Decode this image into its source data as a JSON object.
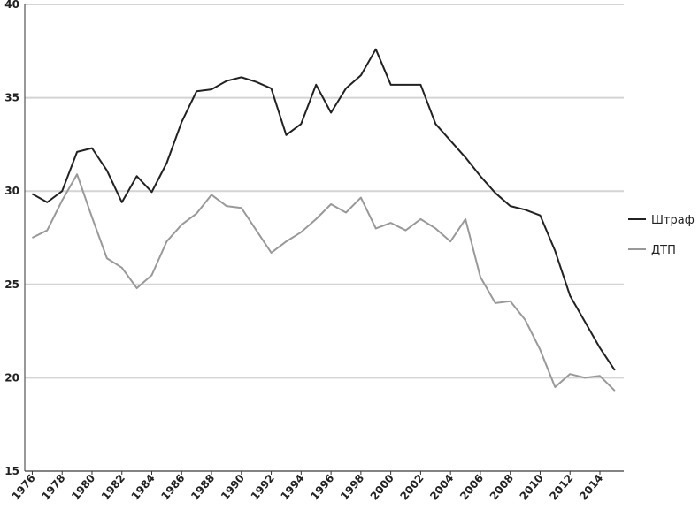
{
  "chart_data": {
    "type": "line",
    "x": [
      1976,
      1977,
      1978,
      1979,
      1980,
      1981,
      1982,
      1983,
      1984,
      1985,
      1986,
      1987,
      1988,
      1989,
      1990,
      1991,
      1992,
      1993,
      1994,
      1995,
      1996,
      1997,
      1998,
      1999,
      2000,
      2001,
      2002,
      2003,
      2004,
      2005,
      2006,
      2007,
      2008,
      2009,
      2010,
      2011,
      2012,
      2013,
      2014,
      2015
    ],
    "series": [
      {
        "name": "Штраф",
        "color": "#222222",
        "values": [
          29.85,
          29.4,
          30.0,
          32.1,
          32.3,
          31.1,
          29.4,
          30.8,
          29.95,
          31.5,
          33.7,
          35.35,
          35.45,
          35.9,
          36.1,
          35.85,
          35.5,
          33.0,
          33.6,
          35.7,
          34.2,
          35.5,
          36.2,
          37.6,
          35.7,
          35.7,
          35.7,
          33.6,
          32.7,
          31.8,
          30.8,
          29.9,
          29.2,
          29.0,
          28.7,
          26.8,
          24.4,
          23.0,
          21.6,
          20.4
        ]
      },
      {
        "name": "ДТП",
        "color": "#999999",
        "values": [
          27.5,
          27.9,
          29.5,
          30.9,
          28.6,
          26.4,
          25.9,
          24.8,
          25.5,
          27.3,
          28.2,
          28.8,
          29.8,
          29.2,
          29.1,
          27.9,
          26.7,
          27.3,
          27.8,
          28.5,
          29.3,
          28.85,
          29.65,
          28.0,
          28.3,
          27.9,
          28.5,
          28.0,
          27.3,
          28.5,
          25.4,
          24.0,
          24.1,
          23.1,
          21.5,
          19.5,
          20.2,
          20.0,
          20.1,
          19.3
        ]
      }
    ],
    "xlim": [
      1975.5,
      2015.6
    ],
    "xticks": [
      1976,
      1978,
      1980,
      1982,
      1984,
      1986,
      1988,
      1990,
      1992,
      1994,
      1996,
      1998,
      2000,
      2002,
      2004,
      2006,
      2008,
      2010,
      2012,
      2014
    ],
    "ylim": [
      15,
      40
    ],
    "yticks": [
      15,
      20,
      25,
      30,
      35,
      40
    ],
    "grid": true,
    "legend": "right"
  }
}
